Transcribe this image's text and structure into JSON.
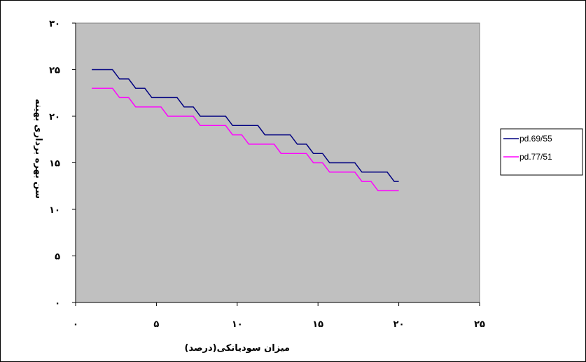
{
  "chart_data": {
    "type": "line",
    "xlabel": "میزان سودیانکی(درصد)",
    "ylabel": "سن بهره برداری بهینه",
    "xlim": [
      0,
      25
    ],
    "ylim": [
      0,
      30
    ],
    "x_ticks": [
      {
        "value": 0,
        "label": "۰"
      },
      {
        "value": 5,
        "label": "۵"
      },
      {
        "value": 10,
        "label": "۱۰"
      },
      {
        "value": 15,
        "label": "۱۵"
      },
      {
        "value": 20,
        "label": "۲۰"
      },
      {
        "value": 25,
        "label": "۲۵"
      }
    ],
    "y_ticks": [
      {
        "value": 0,
        "label": "۰"
      },
      {
        "value": 5,
        "label": "۵"
      },
      {
        "value": 10,
        "label": "۱۰"
      },
      {
        "value": 15,
        "label": "۱۵"
      },
      {
        "value": 20,
        "label": "۲۰"
      },
      {
        "value": 25,
        "label": "۲۵"
      },
      {
        "value": 30,
        "label": "۳۰"
      }
    ],
    "grid": false,
    "plot_background": "#c0c0c0",
    "legend_position": "right",
    "x": [
      1,
      2,
      3,
      4,
      5,
      6,
      7,
      8,
      9,
      10,
      11,
      12,
      13,
      14,
      15,
      16,
      17,
      18,
      19,
      20
    ],
    "series": [
      {
        "name": "pd.69/55",
        "color": "#000080",
        "values": [
          25,
          25,
          24,
          23,
          22,
          22,
          21,
          20,
          20,
          19,
          19,
          18,
          18,
          17,
          16,
          15,
          15,
          14,
          14,
          13
        ]
      },
      {
        "name": "pd.77/51",
        "color": "#ff00ff",
        "values": [
          23,
          23,
          22,
          21,
          21,
          20,
          20,
          19,
          19,
          18,
          17,
          17,
          16,
          16,
          15,
          14,
          14,
          13,
          12,
          12
        ]
      }
    ]
  }
}
